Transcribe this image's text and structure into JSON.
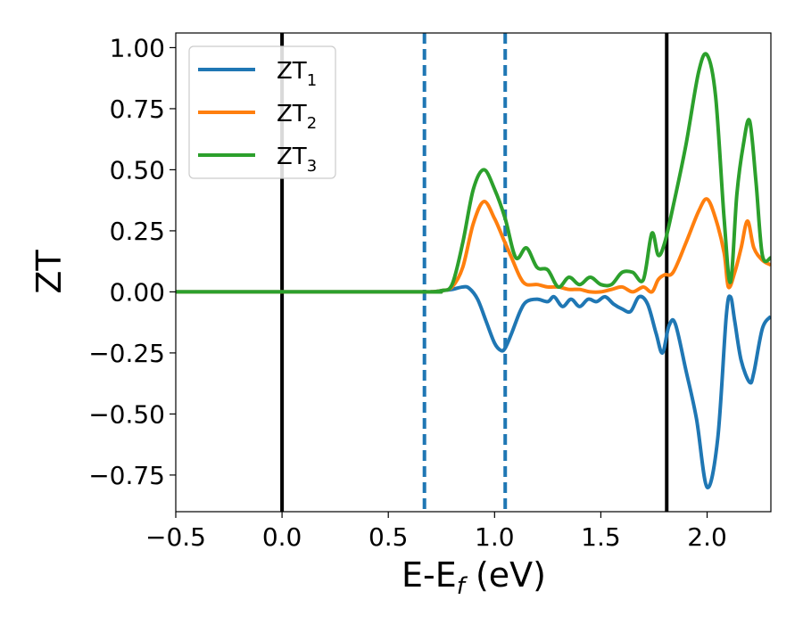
{
  "chart_data": {
    "type": "line",
    "title": "",
    "xlabel": {
      "main": "E-E",
      "sub": "f",
      "unit": " (eV)"
    },
    "ylabel": "ZT",
    "xlim": [
      -0.5,
      2.3
    ],
    "ylim": [
      -0.9,
      1.06
    ],
    "xticks": [
      -0.5,
      0.0,
      0.5,
      1.0,
      1.5,
      2.0
    ],
    "xtick_labels": [
      "−0.5",
      "0.0",
      "0.5",
      "1.0",
      "1.5",
      "2.0"
    ],
    "yticks": [
      1.0,
      0.75,
      0.5,
      0.25,
      0.0,
      -0.25,
      -0.5,
      -0.75
    ],
    "ytick_labels": [
      "1.00",
      "0.75",
      "0.50",
      "0.25",
      "0.00",
      "−0.25",
      "−0.50",
      "−0.75"
    ],
    "legend_position": "top-left",
    "grid": false,
    "vlines": [
      {
        "x": 0.0,
        "color": "#000000",
        "style": "solid"
      },
      {
        "x": 0.67,
        "color": "#1f77b4",
        "style": "dashed"
      },
      {
        "x": 1.05,
        "color": "#1f77b4",
        "style": "dashed"
      },
      {
        "x": 1.81,
        "color": "#000000",
        "style": "solid"
      }
    ],
    "series": [
      {
        "name": "ZT",
        "sub": "1",
        "color": "#1f77b4",
        "x": [
          -0.5,
          0.65,
          0.7,
          0.75,
          0.8,
          0.85,
          0.88,
          0.92,
          0.96,
          1.0,
          1.03,
          1.05,
          1.08,
          1.12,
          1.15,
          1.2,
          1.25,
          1.28,
          1.32,
          1.36,
          1.4,
          1.44,
          1.48,
          1.52,
          1.56,
          1.6,
          1.64,
          1.68,
          1.72,
          1.76,
          1.79,
          1.82,
          1.85,
          1.9,
          1.95,
          2.0,
          2.05,
          2.09,
          2.11,
          2.13,
          2.16,
          2.2,
          2.22,
          2.26,
          2.3
        ],
        "y": [
          0,
          0,
          0,
          0.005,
          0.01,
          0.02,
          0.015,
          -0.03,
          -0.12,
          -0.21,
          -0.24,
          -0.23,
          -0.17,
          -0.08,
          -0.04,
          -0.03,
          -0.04,
          -0.02,
          -0.06,
          -0.03,
          -0.06,
          -0.03,
          -0.04,
          -0.02,
          -0.05,
          -0.07,
          -0.08,
          -0.02,
          -0.05,
          -0.17,
          -0.25,
          -0.14,
          -0.13,
          -0.32,
          -0.52,
          -0.8,
          -0.6,
          -0.1,
          -0.02,
          -0.12,
          -0.28,
          -0.37,
          -0.33,
          -0.15,
          -0.1
        ]
      },
      {
        "name": "ZT",
        "sub": "2",
        "color": "#ff7f0e",
        "x": [
          -0.5,
          0.65,
          0.7,
          0.75,
          0.8,
          0.85,
          0.9,
          0.95,
          1.0,
          1.04,
          1.08,
          1.12,
          1.15,
          1.2,
          1.25,
          1.3,
          1.35,
          1.4,
          1.45,
          1.5,
          1.55,
          1.6,
          1.65,
          1.7,
          1.74,
          1.77,
          1.8,
          1.84,
          1.9,
          1.96,
          2.0,
          2.04,
          2.08,
          2.1,
          2.13,
          2.16,
          2.19,
          2.22,
          2.26,
          2.3
        ],
        "y": [
          0,
          0,
          0,
          0.005,
          0.02,
          0.1,
          0.28,
          0.37,
          0.3,
          0.22,
          0.14,
          0.06,
          0.03,
          0.03,
          0.02,
          0.02,
          0.01,
          0.01,
          0.0,
          0.0,
          0.01,
          0.02,
          0.0,
          0.02,
          0.0,
          0.05,
          0.07,
          0.08,
          0.2,
          0.33,
          0.38,
          0.3,
          0.16,
          0.02,
          0.08,
          0.18,
          0.29,
          0.18,
          0.13,
          0.11
        ]
      },
      {
        "name": "ZT",
        "sub": "3",
        "color": "#2ca02c",
        "x": [
          -0.5,
          0.65,
          0.7,
          0.75,
          0.8,
          0.85,
          0.9,
          0.95,
          1.0,
          1.05,
          1.1,
          1.15,
          1.2,
          1.25,
          1.3,
          1.35,
          1.4,
          1.45,
          1.5,
          1.55,
          1.6,
          1.65,
          1.7,
          1.74,
          1.77,
          1.8,
          1.84,
          1.9,
          1.96,
          2.0,
          2.04,
          2.08,
          2.11,
          2.14,
          2.17,
          2.2,
          2.23,
          2.26,
          2.3
        ],
        "y": [
          0,
          0,
          0,
          0.005,
          0.03,
          0.2,
          0.42,
          0.5,
          0.42,
          0.3,
          0.14,
          0.18,
          0.1,
          0.09,
          0.02,
          0.06,
          0.03,
          0.06,
          0.03,
          0.03,
          0.08,
          0.08,
          0.05,
          0.24,
          0.15,
          0.2,
          0.35,
          0.6,
          0.9,
          0.97,
          0.8,
          0.3,
          0.04,
          0.4,
          0.6,
          0.7,
          0.45,
          0.15,
          0.14
        ]
      }
    ]
  }
}
